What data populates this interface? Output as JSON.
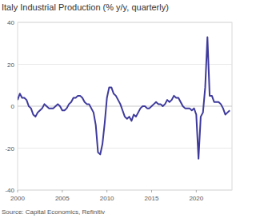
{
  "chart_data": {
    "type": "line",
    "title": "Italy Industrial Production (% y/y, quarterly)",
    "source": "Source: Capital Economics, Refinitiv",
    "x": [
      2000,
      2000.25,
      2000.5,
      2000.75,
      2001,
      2001.25,
      2001.5,
      2001.75,
      2002,
      2002.25,
      2002.5,
      2002.75,
      2003,
      2003.25,
      2003.5,
      2003.75,
      2004,
      2004.25,
      2004.5,
      2004.75,
      2005,
      2005.25,
      2005.5,
      2005.75,
      2006,
      2006.25,
      2006.5,
      2006.75,
      2007,
      2007.25,
      2007.5,
      2007.75,
      2008,
      2008.25,
      2008.5,
      2008.75,
      2009,
      2009.25,
      2009.5,
      2009.75,
      2010,
      2010.25,
      2010.5,
      2010.75,
      2011,
      2011.25,
      2011.5,
      2011.75,
      2012,
      2012.25,
      2012.5,
      2012.75,
      2013,
      2013.25,
      2013.5,
      2013.75,
      2014,
      2014.25,
      2014.5,
      2014.75,
      2015,
      2015.25,
      2015.5,
      2015.75,
      2016,
      2016.25,
      2016.5,
      2016.75,
      2017,
      2017.25,
      2017.5,
      2017.75,
      2018,
      2018.25,
      2018.5,
      2018.75,
      2019,
      2019.25,
      2019.5,
      2019.75,
      2020,
      2020.25,
      2020.5,
      2020.75,
      2021,
      2021.25,
      2021.5,
      2021.75,
      2022,
      2022.25,
      2022.5,
      2022.75,
      2023,
      2023.25,
      2023.5,
      2023.75
    ],
    "series": [
      {
        "name": "Italy Industrial Production",
        "color": "#3e3a9c",
        "values": [
          3,
          6,
          4,
          4,
          3,
          0,
          -1,
          -4,
          -5,
          -3,
          -2,
          -1,
          1,
          0,
          -1,
          -1,
          -1,
          0,
          1,
          0,
          -2,
          -2,
          -1,
          1,
          2,
          4,
          4,
          5,
          5,
          4,
          2,
          1,
          1,
          -1,
          -3,
          -9,
          -22,
          -23,
          -18,
          -8,
          4,
          9,
          9,
          6,
          5,
          3,
          1,
          -2,
          -5,
          -6,
          -5,
          -7,
          -4,
          -5,
          -3,
          -1,
          0,
          0,
          -1,
          -1,
          0,
          1,
          2,
          1,
          1,
          0,
          1,
          3,
          2,
          3,
          5,
          4,
          4,
          2,
          0,
          -1,
          -1,
          -1,
          -2,
          -1,
          -4,
          -25,
          -5,
          -3,
          9,
          33,
          5,
          5,
          2,
          2,
          2,
          1,
          -1,
          -4,
          -3,
          -2
        ]
      }
    ],
    "xlim": [
      2000,
      2024
    ],
    "xticks": [
      2000,
      2005,
      2010,
      2015,
      2020
    ],
    "ylim": [
      -40,
      40
    ],
    "yticks": [
      -40,
      -20,
      0,
      20,
      40
    ],
    "grid": true
  }
}
